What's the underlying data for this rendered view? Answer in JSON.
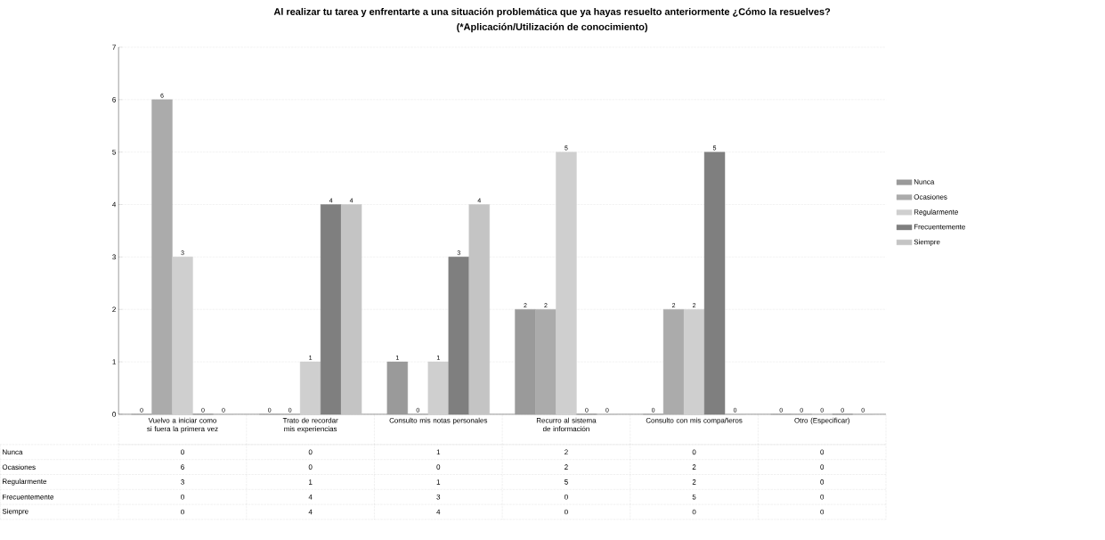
{
  "chart_data": {
    "type": "bar",
    "title": "Al realizar tu tarea y enfrentarte a una situación problemática que ya hayas resuelto anteriormente ¿Cómo la resuelves?",
    "subtitle": "(*Aplicación/Utilización de conocimiento)",
    "categories": [
      "Vuelvo a iniciar como si fuera la primera vez",
      "Trato de recordar mis experiencias",
      "Consulto mis notas personales",
      "Recurro al sistema de información",
      "Consulto con mis compañeros",
      "Otro (Especificar)"
    ],
    "series": [
      {
        "name": "Nunca",
        "color": "#9a9a9a",
        "values": [
          0,
          0,
          1,
          2,
          0,
          0
        ],
        "value_labels": [
          "0",
          "0",
          "1",
          "2",
          "0",
          "0"
        ]
      },
      {
        "name": "Ocasiones",
        "color": "#ababab",
        "values": [
          6,
          0,
          0,
          2,
          2,
          0
        ],
        "value_labels": [
          "6",
          "0",
          "0",
          "2",
          "2",
          "0"
        ]
      },
      {
        "name": "Regularmente",
        "color": "#cfcfcf",
        "values": [
          3,
          1,
          1,
          5,
          2,
          0
        ],
        "value_labels": [
          "3",
          "1",
          "1",
          "5",
          "2",
          "0"
        ]
      },
      {
        "name": "Frecuentemente",
        "color": "#7f7f7f",
        "values": [
          0,
          4,
          3,
          0,
          5,
          0
        ],
        "value_labels": [
          "0",
          "4",
          "3",
          "0",
          "5",
          "0"
        ]
      },
      {
        "name": "Siempre",
        "color": "#c4c4c4",
        "values": [
          0,
          4,
          4,
          0,
          0,
          0
        ],
        "value_labels": [
          "0",
          "4",
          "4",
          "0",
          "0",
          "0"
        ]
      }
    ],
    "ylim": [
      0,
      7
    ],
    "yticks": [
      0,
      1,
      2,
      3,
      4,
      5,
      6,
      7
    ],
    "grid": "y",
    "legend": "right"
  }
}
